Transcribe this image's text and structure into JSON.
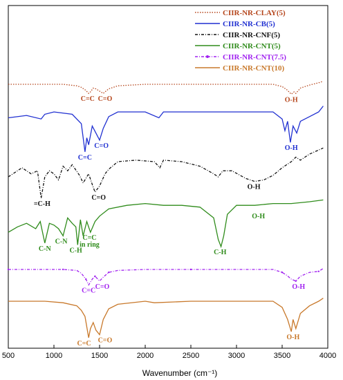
{
  "chart_data": {
    "type": "line",
    "title": "",
    "xlabel": "Wavenumber (cm⁻¹)",
    "ylabel": "",
    "xlim": [
      500,
      4000
    ],
    "x_ticks": [
      500,
      1000,
      1500,
      2000,
      2500,
      3000,
      3500,
      4000
    ],
    "legend": {
      "position": "top-right",
      "entries": [
        {
          "name": "CIIR-NR-CLAY(5)",
          "color": "#b5451b",
          "style": "dotted"
        },
        {
          "name": "CIIR-NR-CB(5)",
          "color": "#1f2fd1",
          "style": "solid"
        },
        {
          "name": "CIIR-NR-CNF(5)",
          "color": "#111111",
          "style": "dash-dot"
        },
        {
          "name": "CIIR-NR-CNT(5)",
          "color": "#2e8b1a",
          "style": "solid"
        },
        {
          "name": "CIIR-NR-CNT(7.5)",
          "color": "#a020f0",
          "style": "dash-dot-marker"
        },
        {
          "name": "CIIR-NR-CNT(10)",
          "color": "#c8782a",
          "style": "solid"
        }
      ]
    },
    "series": [
      {
        "name": "CIIR-NR-CLAY(5)",
        "color": "#b5451b",
        "style": "dotted",
        "x": [
          500,
          700,
          900,
          1100,
          1250,
          1300,
          1350,
          1380,
          1400,
          1430,
          1460,
          1500,
          1540,
          1600,
          1700,
          2000,
          2500,
          3000,
          3400,
          3500,
          3550,
          3600,
          3630,
          3650,
          3700,
          3800,
          3900,
          3950
        ],
        "y": [
          0,
          0,
          0,
          0,
          -0.2,
          -0.4,
          -0.8,
          -1.2,
          -1.0,
          -0.5,
          -0.6,
          -0.9,
          -1.2,
          -0.6,
          -0.2,
          0,
          0,
          0,
          0,
          -0.3,
          -0.7,
          -1.3,
          -1.0,
          -1.2,
          -0.5,
          -0.1,
          0.2,
          0.4
        ]
      },
      {
        "name": "CIIR-NR-CB(5)",
        "color": "#1f2fd1",
        "style": "solid",
        "x": [
          500,
          700,
          860,
          900,
          1000,
          1200,
          1300,
          1340,
          1360,
          1380,
          1420,
          1460,
          1500,
          1540,
          1600,
          1700,
          2000,
          2150,
          2200,
          2500,
          3000,
          3400,
          3500,
          3530,
          3560,
          3590,
          3620,
          3660,
          3700,
          3800,
          3900,
          3950
        ],
        "y": [
          -0.5,
          -0.3,
          -0.6,
          -0.2,
          0,
          -0.2,
          -1.0,
          -3.4,
          -2.2,
          -2.8,
          -1.2,
          -1.8,
          -2.4,
          -1.4,
          -0.4,
          0,
          0,
          -0.5,
          0,
          0,
          0,
          0,
          -0.6,
          -1.6,
          -0.8,
          -2.6,
          -1.2,
          -1.8,
          -0.8,
          -0.4,
          0,
          0.5
        ]
      },
      {
        "name": "CIIR-NR-CNF(5)",
        "color": "#111111",
        "style": "dash-dot",
        "x": [
          500,
          650,
          750,
          820,
          860,
          900,
          950,
          1000,
          1050,
          1100,
          1150,
          1200,
          1280,
          1320,
          1380,
          1420,
          1450,
          1500,
          1560,
          1600,
          1700,
          1900,
          2100,
          2160,
          2200,
          2400,
          2600,
          2750,
          2800,
          2850,
          2950,
          3100,
          3200,
          3300,
          3400,
          3500,
          3600,
          3650,
          3700,
          3800,
          3950
        ],
        "y": [
          -1.0,
          -0.4,
          -0.8,
          -0.6,
          -2.4,
          -1.0,
          -0.6,
          -0.8,
          -1.2,
          -0.3,
          -0.6,
          -0.2,
          -0.9,
          -1.4,
          -0.8,
          -1.5,
          -2.0,
          -1.6,
          -0.8,
          -0.5,
          0,
          0.1,
          0,
          -0.4,
          0.1,
          0,
          -0.3,
          -0.8,
          -1.0,
          -0.6,
          -0.6,
          -1.1,
          -1.3,
          -1.2,
          -0.9,
          -0.4,
          0,
          0.3,
          0.1,
          0.5,
          0.9
        ]
      },
      {
        "name": "CIIR-NR-CNT(5)",
        "color": "#2e8b1a",
        "style": "solid",
        "x": [
          500,
          600,
          700,
          800,
          850,
          900,
          950,
          1000,
          1050,
          1100,
          1150,
          1200,
          1240,
          1260,
          1290,
          1320,
          1360,
          1400,
          1450,
          1500,
          1600,
          1800,
          2000,
          2200,
          2400,
          2600,
          2750,
          2800,
          2830,
          2860,
          2900,
          3000,
          3200,
          3400,
          3600,
          3800,
          3950
        ],
        "y": [
          -1.2,
          -0.9,
          -0.7,
          -1.0,
          -0.6,
          -1.8,
          -0.7,
          -0.8,
          -1.0,
          -1.4,
          -0.4,
          -0.7,
          -0.9,
          -1.9,
          -0.5,
          -1.4,
          -0.6,
          -1.2,
          -0.6,
          -0.3,
          0.1,
          0.3,
          0.4,
          0.3,
          0.3,
          0.2,
          -0.4,
          -1.6,
          -2.0,
          -1.4,
          -0.2,
          0.3,
          0.3,
          0.4,
          0.4,
          0.5,
          0.6
        ]
      },
      {
        "name": "CIIR-NR-CNT(7.5)",
        "color": "#a020f0",
        "style": "dash-dot-marker",
        "x": [
          500,
          700,
          900,
          1100,
          1250,
          1300,
          1350,
          1380,
          1420,
          1450,
          1500,
          1540,
          1600,
          1700,
          2000,
          2500,
          3000,
          3400,
          3500,
          3550,
          3600,
          3650,
          3700,
          3800,
          3900,
          3950
        ],
        "y": [
          0,
          0,
          0,
          0,
          -0.1,
          -0.4,
          -1.0,
          -1.6,
          -1.0,
          -0.7,
          -1.2,
          -0.8,
          -0.3,
          -0.1,
          0,
          0,
          0,
          0,
          -0.3,
          -0.6,
          -1.0,
          -1.2,
          -0.7,
          -0.3,
          -0.2,
          0.1
        ]
      },
      {
        "name": "CIIR-NR-CNT(10)",
        "color": "#c8782a",
        "style": "solid",
        "x": [
          500,
          700,
          900,
          1100,
          1250,
          1300,
          1340,
          1380,
          1400,
          1430,
          1460,
          1500,
          1540,
          1600,
          1700,
          2000,
          2100,
          2500,
          3000,
          3400,
          3500,
          3560,
          3600,
          3620,
          3650,
          3700,
          3800,
          3900,
          3950
        ],
        "y": [
          0,
          0,
          0,
          -0.1,
          -0.3,
          -0.6,
          -1.0,
          -2.4,
          -1.8,
          -1.4,
          -1.9,
          -2.2,
          -1.2,
          -0.5,
          -0.2,
          0,
          -0.1,
          0,
          0,
          0,
          -0.4,
          -1.2,
          -2.0,
          -1.2,
          -1.8,
          -0.8,
          -0.3,
          0,
          0.2
        ]
      }
    ],
    "annotations": [
      {
        "series": 0,
        "text": "C=C",
        "x": 1370
      },
      {
        "series": 0,
        "text": "C=O",
        "x": 1560
      },
      {
        "series": 0,
        "text": "O-H",
        "x": 3600
      },
      {
        "series": 1,
        "text": "C=O",
        "x": 1520
      },
      {
        "series": 1,
        "text": "C=C",
        "x": 1340
      },
      {
        "series": 1,
        "text": "O-H",
        "x": 3600
      },
      {
        "series": 2,
        "text": "=C-H",
        "x": 870
      },
      {
        "series": 2,
        "text": "C=O",
        "x": 1490
      },
      {
        "series": 2,
        "text": "O-H",
        "x": 3190
      },
      {
        "series": 3,
        "text": "C-N",
        "x": 900
      },
      {
        "series": 3,
        "text": "C-N",
        "x": 1080
      },
      {
        "series": 3,
        "text": "C-H",
        "x": 1240
      },
      {
        "series": 3,
        "text": "C=C",
        "x": 1390
      },
      {
        "series": 3,
        "text": "in ring",
        "x": 1390
      },
      {
        "series": 3,
        "text": "C-H",
        "x": 2820
      },
      {
        "series": 3,
        "text": "O-H",
        "x": 3240
      },
      {
        "series": 4,
        "text": "C=O",
        "x": 1530
      },
      {
        "series": 4,
        "text": "C=C",
        "x": 1380
      },
      {
        "series": 4,
        "text": "O-H",
        "x": 3680
      },
      {
        "series": 5,
        "text": "C=O",
        "x": 1560
      },
      {
        "series": 5,
        "text": "C=C",
        "x": 1330
      },
      {
        "series": 5,
        "text": "O-H",
        "x": 3620
      }
    ]
  }
}
